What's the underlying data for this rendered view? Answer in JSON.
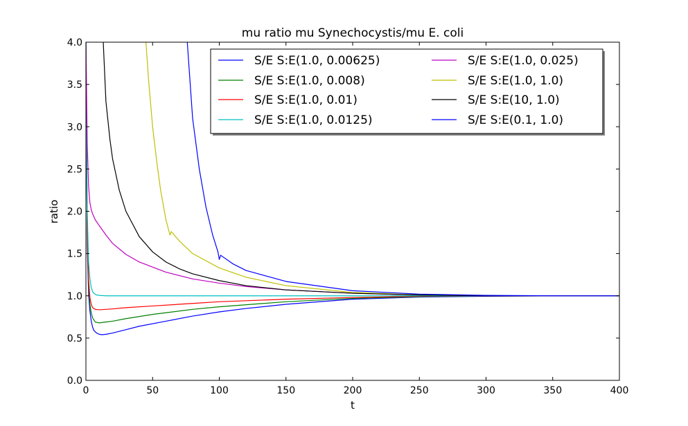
{
  "chart_data": {
    "type": "line",
    "title": "mu ratio mu Synechocystis/mu E. coli",
    "xlabel": "t",
    "ylabel": "ratio",
    "xlim": [
      0,
      400
    ],
    "ylim": [
      0.0,
      4.0
    ],
    "xticks": [
      "0",
      "50",
      "100",
      "150",
      "200",
      "250",
      "300",
      "350",
      "400"
    ],
    "yticks": [
      "0.0",
      "0.5",
      "1.0",
      "1.5",
      "2.0",
      "2.5",
      "3.0",
      "3.5",
      "4.0"
    ],
    "grid": false,
    "legend": {
      "placement": "top-right",
      "columns": 2
    },
    "series": [
      {
        "name": "S/E S:E(1.0, 0.00625)",
        "color": "#0000ff",
        "x": [
          0,
          1,
          2,
          3,
          4,
          5,
          6,
          8,
          10,
          12,
          15,
          20,
          30,
          40,
          60,
          80,
          100,
          120,
          150,
          200,
          250,
          300,
          350,
          400
        ],
        "y": [
          4.0,
          1.6,
          1.02,
          0.82,
          0.7,
          0.63,
          0.59,
          0.56,
          0.545,
          0.54,
          0.545,
          0.56,
          0.6,
          0.64,
          0.7,
          0.76,
          0.81,
          0.85,
          0.9,
          0.96,
          0.985,
          0.995,
          1.0,
          1.0
        ]
      },
      {
        "name": "S/E S:E(1.0, 0.008)",
        "color": "#008000",
        "x": [
          0,
          1,
          2,
          3,
          4,
          5,
          7,
          10,
          15,
          20,
          30,
          50,
          80,
          100,
          150,
          200,
          250,
          300,
          350,
          400
        ],
        "y": [
          4.0,
          1.7,
          1.12,
          0.9,
          0.8,
          0.74,
          0.69,
          0.68,
          0.69,
          0.7,
          0.73,
          0.78,
          0.84,
          0.87,
          0.93,
          0.97,
          0.99,
          1.0,
          1.0,
          1.0
        ]
      },
      {
        "name": "S/E S:E(1.0, 0.01)",
        "color": "#ff0000",
        "x": [
          0,
          1,
          2,
          3,
          4,
          5,
          7,
          10,
          15,
          20,
          30,
          50,
          80,
          100,
          150,
          200,
          250,
          300,
          350,
          400
        ],
        "y": [
          4.0,
          1.8,
          1.2,
          0.98,
          0.9,
          0.86,
          0.84,
          0.835,
          0.84,
          0.845,
          0.86,
          0.88,
          0.91,
          0.93,
          0.96,
          0.98,
          0.995,
          1.0,
          1.0,
          1.0
        ]
      },
      {
        "name": "S/E S:E(1.0, 0.0125)",
        "color": "#00bfbf",
        "x": [
          0,
          1,
          2,
          3,
          4,
          5,
          6,
          8,
          10,
          15,
          20,
          30,
          50,
          100,
          200,
          300,
          400
        ],
        "y": [
          4.0,
          2.0,
          1.4,
          1.2,
          1.1,
          1.05,
          1.03,
          1.01,
          1.005,
          1.0,
          1.0,
          1.0,
          1.0,
          1.0,
          1.0,
          1.0,
          1.0
        ]
      },
      {
        "name": "S/E S:E(1.0, 0.025)",
        "color": "#bf00bf",
        "x": [
          0,
          1,
          2,
          3,
          4,
          5,
          7,
          10,
          15,
          20,
          30,
          40,
          60,
          80,
          100,
          120,
          150,
          200,
          250,
          300,
          350,
          400
        ],
        "y": [
          4.0,
          2.8,
          2.3,
          2.1,
          2.02,
          1.97,
          1.9,
          1.83,
          1.72,
          1.62,
          1.49,
          1.4,
          1.28,
          1.2,
          1.15,
          1.11,
          1.07,
          1.03,
          1.01,
          1.0,
          1.0,
          1.0
        ]
      },
      {
        "name": "S/E S:E(1.0, 1.0)",
        "color": "#bfbf00",
        "x": [
          45,
          47,
          50,
          53,
          56,
          60,
          63,
          64,
          70,
          80,
          100,
          120,
          150,
          200,
          250,
          300,
          350,
          400
        ],
        "y": [
          4.0,
          3.55,
          3.0,
          2.6,
          2.25,
          1.9,
          1.72,
          1.76,
          1.65,
          1.5,
          1.33,
          1.22,
          1.12,
          1.04,
          1.01,
          1.0,
          1.0,
          1.0
        ]
      },
      {
        "name": "S/E S:E(10, 1.0)",
        "color": "#000000",
        "x": [
          13,
          15,
          18,
          20,
          25,
          30,
          40,
          50,
          60,
          70,
          80,
          100,
          120,
          150,
          200,
          250,
          300,
          350,
          400
        ],
        "y": [
          4.0,
          3.3,
          2.85,
          2.62,
          2.25,
          2.0,
          1.7,
          1.52,
          1.4,
          1.32,
          1.26,
          1.18,
          1.12,
          1.07,
          1.03,
          1.01,
          1.0,
          1.0,
          1.0
        ]
      },
      {
        "name": "S/E S:E(0.1, 1.0)",
        "color": "#0000ff",
        "x": [
          76,
          80,
          85,
          90,
          95,
          99,
          100,
          101,
          110,
          120,
          150,
          200,
          250,
          300,
          350,
          400
        ],
        "y": [
          4.0,
          3.1,
          2.5,
          2.05,
          1.72,
          1.52,
          1.43,
          1.48,
          1.38,
          1.3,
          1.17,
          1.06,
          1.02,
          1.005,
          1.0,
          1.0
        ]
      }
    ]
  }
}
